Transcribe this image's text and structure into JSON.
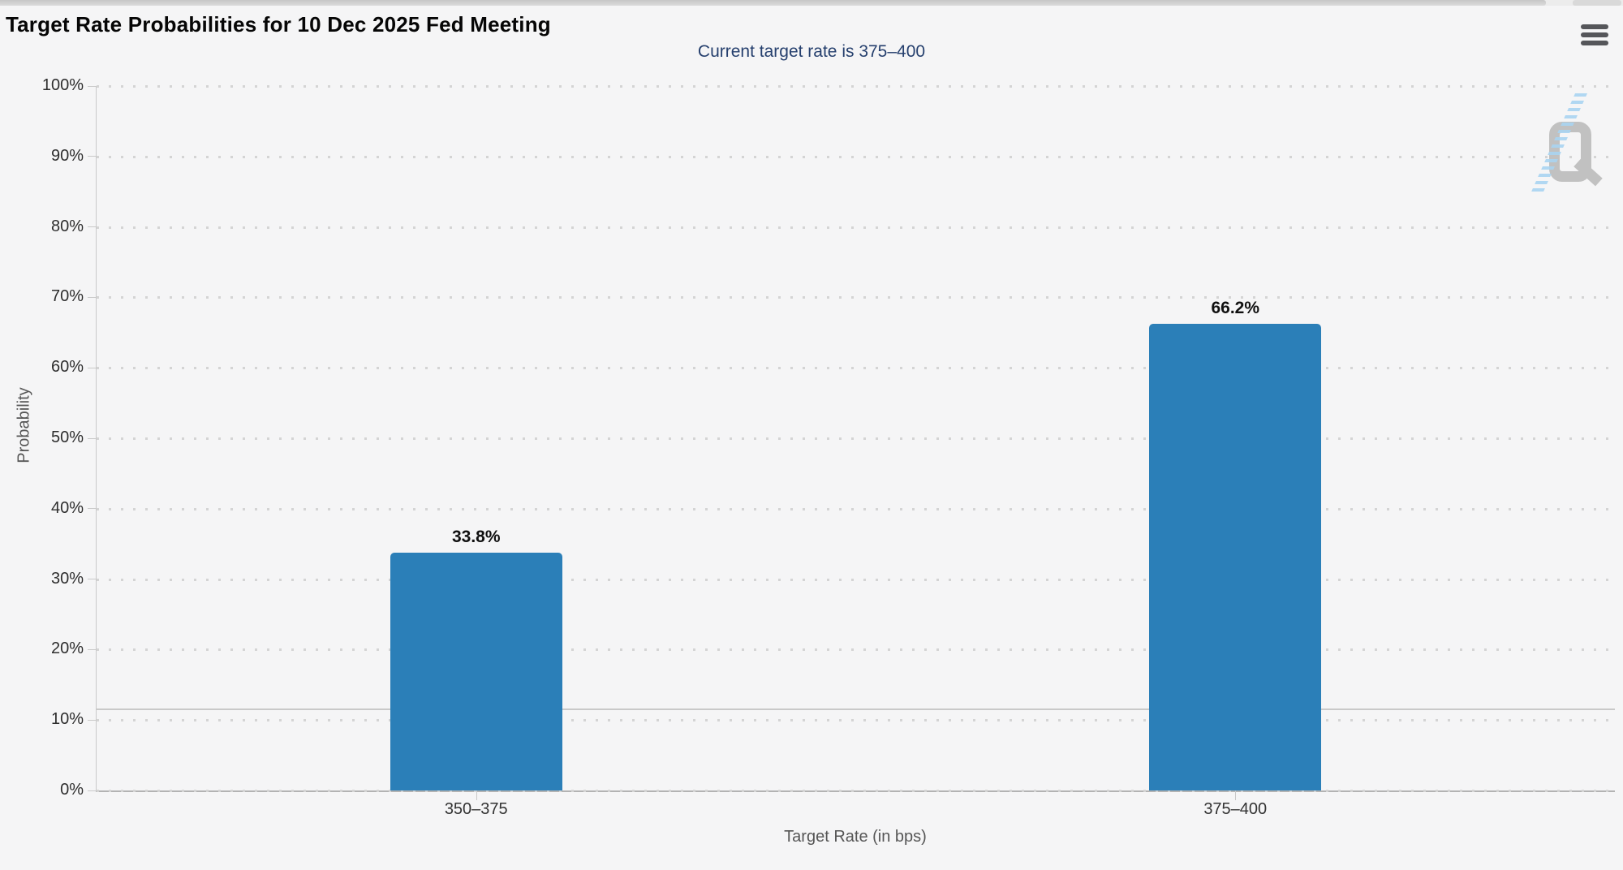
{
  "chart_data": {
    "type": "bar",
    "title": "Target Rate Probabilities for 10 Dec 2025 Fed Meeting",
    "subtitle": "Current target rate is 375–400",
    "xlabel": "Target Rate (in bps)",
    "ylabel": "Probability",
    "categories": [
      "350–375",
      "375–400"
    ],
    "values": [
      33.8,
      66.2
    ],
    "value_labels": [
      "33.8%",
      "66.2%"
    ],
    "ylim": [
      0,
      100
    ],
    "ytick_step": 10,
    "ytick_suffix": "%",
    "grid": "horizontal-dotted",
    "legend": "none",
    "bar_color": "#2b7fb8",
    "reference_line_pct": 11.6
  },
  "header": {
    "menu_icon": "hamburger-menu"
  },
  "watermark": {
    "letter": "Q",
    "swoosh": "blue-dash-diagonal"
  },
  "colors": {
    "background": "#f5f5f6",
    "subtitle_text": "#26406e",
    "axis_title_text": "#565656",
    "tick_text": "#2e2e2e",
    "gridline": "#d4d4d4",
    "axis_line": "#b3b3b3",
    "bar": "#2b7fb8",
    "menu_icon": "#55565a",
    "watermark_gray": "#c1c1c1",
    "watermark_blue": "#a9d4f1"
  }
}
